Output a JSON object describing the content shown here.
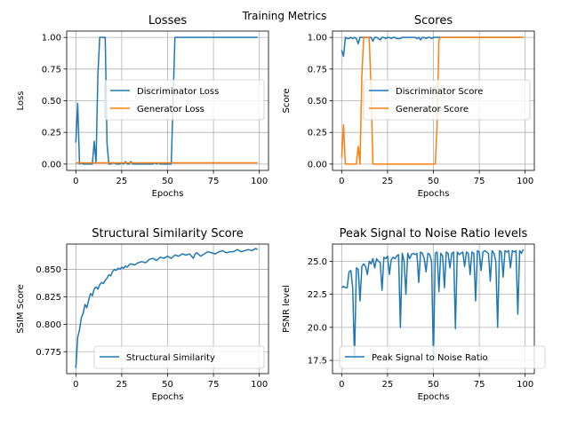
{
  "suptitle": "Training Metrics",
  "colors": {
    "blue": "#1f77b4",
    "orange": "#ff7f0e"
  },
  "chart_data": [
    {
      "type": "line",
      "title": "Losses",
      "xlabel": "Epochs",
      "ylabel": "Loss",
      "xlim": [
        -5,
        105
      ],
      "ylim": [
        -0.05,
        1.05
      ],
      "xticks": [
        0,
        25,
        50,
        75,
        100
      ],
      "yticks": [
        0.0,
        0.25,
        0.5,
        0.75,
        1.0
      ],
      "xtick_labels": [
        "0",
        "25",
        "50",
        "75",
        "100"
      ],
      "ytick_labels": [
        "0.00",
        "0.25",
        "0.50",
        "0.75",
        "1.00"
      ],
      "grid": true,
      "legend_position": "center-right",
      "series": [
        {
          "name": "Discriminator Loss",
          "color": "#1f77b4",
          "x": [
            0,
            1,
            2,
            3,
            4,
            5,
            6,
            7,
            8,
            9,
            10,
            11,
            12,
            13,
            14,
            15,
            16,
            17,
            18,
            19,
            20,
            21,
            22,
            23,
            24,
            25,
            26,
            27,
            28,
            29,
            30,
            31,
            32,
            33,
            34,
            35,
            36,
            37,
            38,
            39,
            40,
            41,
            42,
            43,
            44,
            45,
            46,
            47,
            48,
            49,
            50,
            51,
            52,
            53,
            54,
            99
          ],
          "y": [
            0.17,
            0.48,
            0.0,
            0.01,
            0.0,
            0.0,
            0.0,
            0.0,
            0.0,
            0.0,
            0.18,
            0.01,
            0.7,
            1.0,
            1.0,
            1.0,
            1.0,
            0.16,
            0.0,
            0.0,
            0.01,
            0.01,
            0.0,
            0.0,
            0.0,
            0.01,
            0.0,
            0.02,
            0.0,
            0.0,
            0.02,
            0.0,
            0.0,
            0.0,
            0.0,
            0.0,
            0.0,
            0.0,
            0.0,
            0.0,
            0.0,
            0.0,
            0.0,
            0.01,
            0.0,
            0.01,
            0.0,
            0.0,
            0.0,
            0.0,
            0.0,
            0.0,
            0.0,
            0.5,
            1.0,
            1.0
          ]
        },
        {
          "name": "Generator Loss",
          "color": "#ff7f0e",
          "x": [
            0,
            99
          ],
          "y": [
            0.01,
            0.01
          ]
        }
      ]
    },
    {
      "type": "line",
      "title": "Scores",
      "xlabel": "Epochs",
      "ylabel": "Score",
      "xlim": [
        -5,
        105
      ],
      "ylim": [
        -0.05,
        1.05
      ],
      "xticks": [
        0,
        25,
        50,
        75,
        100
      ],
      "yticks": [
        0.0,
        0.25,
        0.5,
        0.75,
        1.0
      ],
      "xtick_labels": [
        "0",
        "25",
        "50",
        "75",
        "100"
      ],
      "ytick_labels": [
        "0.00",
        "0.25",
        "0.50",
        "0.75",
        "1.00"
      ],
      "grid": true,
      "legend_position": "center-right",
      "series": [
        {
          "name": "Discriminator Score",
          "color": "#1f77b4",
          "x": [
            0,
            1,
            2,
            3,
            4,
            5,
            6,
            7,
            8,
            9,
            10,
            11,
            12,
            13,
            14,
            15,
            16,
            17,
            18,
            19,
            20,
            21,
            22,
            23,
            24,
            25,
            26,
            27,
            28,
            29,
            30,
            31,
            32,
            33,
            34,
            35,
            36,
            37,
            38,
            39,
            40,
            41,
            42,
            43,
            44,
            45,
            46,
            47,
            48,
            49,
            50,
            51,
            52,
            53,
            54,
            99
          ],
          "y": [
            0.9,
            0.85,
            1.0,
            0.99,
            0.99,
            1.0,
            0.99,
            1.0,
            0.99,
            0.95,
            1.0,
            1.0,
            1.0,
            1.0,
            1.0,
            1.0,
            1.0,
            0.97,
            1.0,
            1.0,
            0.99,
            0.98,
            1.0,
            1.0,
            0.99,
            1.0,
            1.0,
            0.99,
            1.0,
            1.0,
            0.99,
            0.99,
            0.99,
            1.0,
            1.0,
            1.0,
            1.0,
            1.0,
            1.0,
            1.0,
            1.0,
            0.99,
            1.0,
            0.98,
            1.0,
            1.0,
            0.99,
            1.0,
            1.0,
            0.99,
            1.0,
            1.0,
            1.0,
            1.0,
            1.0,
            1.0
          ]
        },
        {
          "name": "Generator Score",
          "color": "#ff7f0e",
          "x": [
            0,
            1,
            2,
            3,
            4,
            5,
            6,
            7,
            8,
            9,
            10,
            11,
            12,
            13,
            14,
            15,
            16,
            17,
            18,
            19,
            20,
            21,
            22,
            23,
            24,
            25,
            26,
            27,
            28,
            29,
            30,
            31,
            32,
            33,
            34,
            35,
            36,
            37,
            38,
            39,
            40,
            41,
            42,
            43,
            44,
            45,
            46,
            47,
            48,
            49,
            50,
            51,
            52,
            53,
            54,
            99
          ],
          "y": [
            0.05,
            0.31,
            0.0,
            0.0,
            0.0,
            0.0,
            0.0,
            0.0,
            0.0,
            0.14,
            0.0,
            0.7,
            1.0,
            1.0,
            1.0,
            1.0,
            0.6,
            0.0,
            0.0,
            0.0,
            0.0,
            0.0,
            0.0,
            0.0,
            0.0,
            0.0,
            0.0,
            0.0,
            0.0,
            0.0,
            0.0,
            0.0,
            0.0,
            0.0,
            0.0,
            0.0,
            0.0,
            0.0,
            0.0,
            0.0,
            0.0,
            0.0,
            0.0,
            0.0,
            0.0,
            0.0,
            0.0,
            0.0,
            0.0,
            0.0,
            0.0,
            0.0,
            0.3,
            0.98,
            1.0,
            1.0
          ]
        }
      ]
    },
    {
      "type": "line",
      "title": "Structural Similarity Score",
      "xlabel": "Epochs",
      "ylabel": "SSIM Score",
      "xlim": [
        -5,
        105
      ],
      "ylim": [
        0.755,
        0.873
      ],
      "xticks": [
        0,
        25,
        50,
        75,
        100
      ],
      "yticks": [
        0.775,
        0.8,
        0.825,
        0.85
      ],
      "xtick_labels": [
        "0",
        "25",
        "50",
        "75",
        "100"
      ],
      "ytick_labels": [
        "0.775",
        "0.800",
        "0.825",
        "0.850"
      ],
      "grid": true,
      "legend_position": "lower-right",
      "series": [
        {
          "name": "Structural Similarity",
          "color": "#1f77b4",
          "x": [
            0,
            1,
            2,
            3,
            4,
            5,
            6,
            7,
            8,
            9,
            10,
            11,
            12,
            13,
            14,
            15,
            16,
            17,
            18,
            19,
            20,
            21,
            22,
            23,
            24,
            25,
            26,
            27,
            28,
            29,
            30,
            32,
            34,
            36,
            38,
            40,
            42,
            44,
            46,
            48,
            50,
            52,
            54,
            56,
            58,
            60,
            62,
            64,
            65,
            66,
            68,
            70,
            72,
            74,
            76,
            78,
            80,
            82,
            84,
            86,
            88,
            90,
            92,
            94,
            96,
            98,
            99
          ],
          "y": [
            0.76,
            0.788,
            0.795,
            0.806,
            0.81,
            0.818,
            0.815,
            0.822,
            0.828,
            0.826,
            0.832,
            0.834,
            0.832,
            0.836,
            0.838,
            0.837,
            0.84,
            0.842,
            0.845,
            0.844,
            0.848,
            0.85,
            0.849,
            0.851,
            0.85,
            0.852,
            0.851,
            0.853,
            0.852,
            0.854,
            0.855,
            0.854,
            0.856,
            0.857,
            0.856,
            0.859,
            0.86,
            0.858,
            0.861,
            0.86,
            0.862,
            0.86,
            0.863,
            0.862,
            0.864,
            0.863,
            0.864,
            0.86,
            0.864,
            0.865,
            0.862,
            0.864,
            0.866,
            0.865,
            0.864,
            0.866,
            0.867,
            0.865,
            0.866,
            0.866,
            0.868,
            0.866,
            0.867,
            0.868,
            0.867,
            0.869,
            0.868
          ]
        }
      ]
    },
    {
      "type": "line",
      "title": "Peak Signal to Noise Ratio levels",
      "xlabel": "Epochs",
      "ylabel": "PSNR level",
      "xlim": [
        -5,
        105
      ],
      "ylim": [
        16.5,
        26.3
      ],
      "xticks": [
        0,
        25,
        50,
        75,
        100
      ],
      "yticks": [
        17.5,
        20.0,
        22.5,
        25.0
      ],
      "xtick_labels": [
        "0",
        "25",
        "50",
        "75",
        "100"
      ],
      "ytick_labels": [
        "17.5",
        "20.0",
        "22.5",
        "25.0"
      ],
      "grid": true,
      "legend_position": "lower-right",
      "series": [
        {
          "name": "Peak Signal to Noise Ratio",
          "color": "#1f77b4",
          "x": [
            0,
            1,
            2,
            3,
            4,
            5,
            6,
            7,
            8,
            9,
            10,
            11,
            12,
            13,
            14,
            15,
            16,
            17,
            18,
            19,
            20,
            21,
            22,
            23,
            24,
            25,
            26,
            27,
            28,
            29,
            30,
            31,
            32,
            33,
            34,
            35,
            36,
            37,
            38,
            39,
            40,
            41,
            42,
            43,
            44,
            45,
            46,
            47,
            48,
            49,
            50,
            51,
            52,
            53,
            54,
            55,
            56,
            57,
            58,
            59,
            60,
            61,
            62,
            63,
            64,
            65,
            66,
            67,
            68,
            69,
            70,
            71,
            72,
            73,
            74,
            75,
            76,
            77,
            78,
            79,
            80,
            81,
            82,
            83,
            84,
            85,
            86,
            87,
            88,
            89,
            90,
            91,
            92,
            93,
            94,
            95,
            96,
            97,
            98,
            99
          ],
          "y": [
            23.0,
            23.1,
            23.0,
            23.0,
            24.2,
            24.3,
            23.0,
            17.6,
            24.5,
            24.4,
            22.0,
            24.6,
            24.8,
            24.6,
            24.0,
            25.0,
            24.8,
            25.2,
            24.5,
            25.2,
            25.0,
            24.9,
            22.8,
            25.3,
            25.2,
            25.4,
            24.0,
            25.1,
            25.3,
            25.2,
            25.4,
            25.5,
            20.0,
            25.6,
            25.0,
            22.5,
            25.6,
            25.2,
            25.5,
            25.6,
            25.5,
            25.6,
            23.4,
            25.7,
            25.6,
            25.2,
            24.2,
            25.6,
            25.5,
            25.0,
            17.5,
            25.6,
            25.7,
            22.7,
            25.6,
            25.4,
            23.0,
            25.7,
            25.6,
            24.5,
            25.6,
            25.7,
            19.9,
            25.7,
            25.5,
            25.6,
            25.7,
            24.6,
            25.7,
            25.6,
            24.0,
            25.7,
            25.6,
            22.0,
            25.8,
            25.7,
            24.3,
            25.7,
            25.8,
            25.7,
            25.6,
            23.5,
            25.8,
            25.6,
            25.0,
            20.0,
            25.8,
            25.7,
            23.8,
            25.8,
            25.7,
            25.8,
            24.5,
            25.8,
            25.7,
            25.8,
            21.0,
            25.8,
            25.6,
            25.9
          ]
        }
      ]
    }
  ]
}
